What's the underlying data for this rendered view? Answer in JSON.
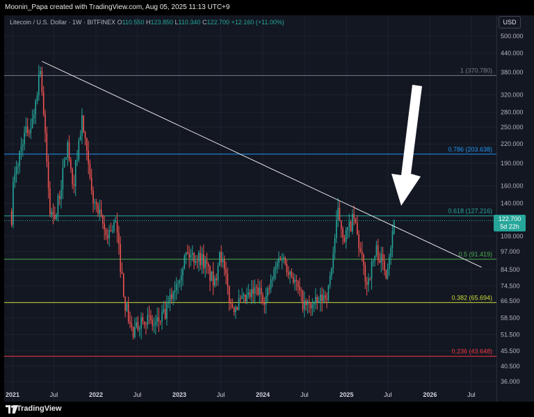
{
  "header": {
    "creator": "Moonin_Papa created with TradingView.com, Aug 05, 2025 11:13 UTC+9"
  },
  "legend": {
    "symbol": "Litecoin / U.S. Dollar · 1W · BITFINEX",
    "open_label": "O",
    "open": "110.550",
    "high_label": "H",
    "high": "123.850",
    "low_label": "L",
    "low": "110.340",
    "close_label": "C",
    "close": "122.700",
    "change": "+12.160 (+11.00%)"
  },
  "currency_button": "USD",
  "last_price": {
    "value": "122.700",
    "countdown": "5d 22h"
  },
  "footer": {
    "brand": "TradingView"
  },
  "colors": {
    "up": "#26a69a",
    "down": "#ef5350",
    "background": "#131722",
    "fib_1": "#787b86",
    "fib_0786": "#2196f3",
    "fib_0618": "#26a69a",
    "fib_05": "#4caf50",
    "fib_0382": "#cddc39",
    "fib_0236": "#f23645"
  },
  "chart_data": {
    "type": "candlestick",
    "scale": "log",
    "interval": "1W",
    "y_ticks": [
      "500.000",
      "440.000",
      "380.000",
      "320.000",
      "280.000",
      "250.000",
      "220.000",
      "190.000",
      "160.000",
      "140.000",
      "109.000",
      "97.000",
      "84.500",
      "74.500",
      "66.500",
      "58.500",
      "51.500",
      "45.500",
      "40.500",
      "36.000"
    ],
    "x_ticks": [
      "2021",
      "Jul",
      "2022",
      "Jul",
      "2023",
      "Jul",
      "2024",
      "Jul",
      "2025",
      "Jul",
      "2026",
      "Jul"
    ],
    "fib_levels": [
      {
        "label": "1 (370.780)",
        "value": 370.78,
        "color_key": "fib_1"
      },
      {
        "label": "0.786 (203.638)",
        "value": 203.638,
        "color_key": "fib_0786"
      },
      {
        "label": "0.618 (127.216)",
        "value": 127.216,
        "color_key": "fib_0618"
      },
      {
        "label": "0.5 (91.419)",
        "value": 91.419,
        "color_key": "fib_05"
      },
      {
        "label": "0.382 (65.694)",
        "value": 65.694,
        "color_key": "fib_0382"
      },
      {
        "label": "0.236 (43.648)",
        "value": 43.648,
        "color_key": "fib_0236"
      }
    ],
    "trendline": {
      "from": {
        "date": "2021-05-10",
        "value": 413
      },
      "to": {
        "date": "2026-08-15",
        "value": 86
      }
    },
    "anchors": [
      {
        "date": "2020-12-28",
        "value": 100
      },
      {
        "date": "2021-01-11",
        "value": 160
      },
      {
        "date": "2021-02-22",
        "value": 230
      },
      {
        "date": "2021-04-05",
        "value": 260
      },
      {
        "date": "2021-05-10",
        "value": 400
      },
      {
        "date": "2021-06-21",
        "value": 130
      },
      {
        "date": "2021-07-19",
        "value": 130
      },
      {
        "date": "2021-09-06",
        "value": 220
      },
      {
        "date": "2021-09-27",
        "value": 155
      },
      {
        "date": "2021-11-08",
        "value": 265
      },
      {
        "date": "2021-12-20",
        "value": 150
      },
      {
        "date": "2022-02-21",
        "value": 110
      },
      {
        "date": "2022-04-04",
        "value": 120
      },
      {
        "date": "2022-05-16",
        "value": 65
      },
      {
        "date": "2022-06-20",
        "value": 51
      },
      {
        "date": "2022-08-01",
        "value": 60
      },
      {
        "date": "2022-09-19",
        "value": 55
      },
      {
        "date": "2022-11-07",
        "value": 60
      },
      {
        "date": "2022-12-12",
        "value": 72
      },
      {
        "date": "2023-02-06",
        "value": 95
      },
      {
        "date": "2023-04-17",
        "value": 92
      },
      {
        "date": "2023-06-12",
        "value": 75
      },
      {
        "date": "2023-07-03",
        "value": 100
      },
      {
        "date": "2023-08-21",
        "value": 64
      },
      {
        "date": "2023-10-16",
        "value": 66
      },
      {
        "date": "2023-12-11",
        "value": 72
      },
      {
        "date": "2024-01-22",
        "value": 68
      },
      {
        "date": "2024-03-25",
        "value": 95
      },
      {
        "date": "2024-05-13",
        "value": 82
      },
      {
        "date": "2024-07-08",
        "value": 64
      },
      {
        "date": "2024-09-02",
        "value": 65
      },
      {
        "date": "2024-10-21",
        "value": 72
      },
      {
        "date": "2024-12-02",
        "value": 130
      },
      {
        "date": "2024-12-30",
        "value": 108
      },
      {
        "date": "2025-02-10",
        "value": 125
      },
      {
        "date": "2025-03-10",
        "value": 95
      },
      {
        "date": "2025-04-07",
        "value": 76
      },
      {
        "date": "2025-05-19",
        "value": 98
      },
      {
        "date": "2025-06-30",
        "value": 84
      },
      {
        "date": "2025-07-28",
        "value": 110
      },
      {
        "date": "2025-08-04",
        "value": 122.7
      }
    ]
  }
}
